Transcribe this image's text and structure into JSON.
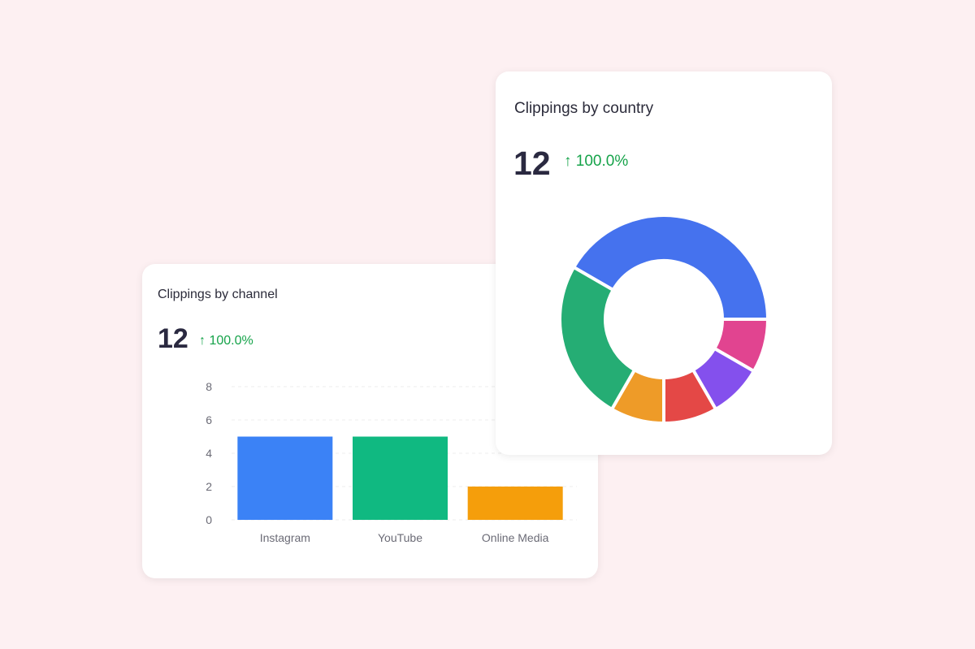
{
  "chart_data": [
    {
      "type": "bar",
      "title": "Clippings by channel",
      "total": "12",
      "change": "100.0%",
      "change_icon": "arrow-up-icon",
      "categories": [
        "Instagram",
        "YouTube",
        "Online Media"
      ],
      "values": [
        5,
        5,
        2
      ],
      "colors": [
        "#3b82f6",
        "#10b981",
        "#f59e0b"
      ],
      "yticks": [
        "0",
        "2",
        "4",
        "6",
        "8"
      ],
      "ylim": [
        0,
        8
      ],
      "grid": true
    },
    {
      "type": "pie",
      "subtype": "donut",
      "title": "Clippings by country",
      "total": "12",
      "change": "100.0%",
      "change_icon": "arrow-up-icon",
      "values": [
        5,
        1,
        1,
        1,
        1,
        3
      ],
      "colors": [
        "#4572ee",
        "#e14490",
        "#8450ed",
        "#e44846",
        "#ee9b28",
        "#25ad74"
      ]
    }
  ],
  "colors": {
    "background": "#fdf0f2",
    "positive": "#16a34a"
  }
}
